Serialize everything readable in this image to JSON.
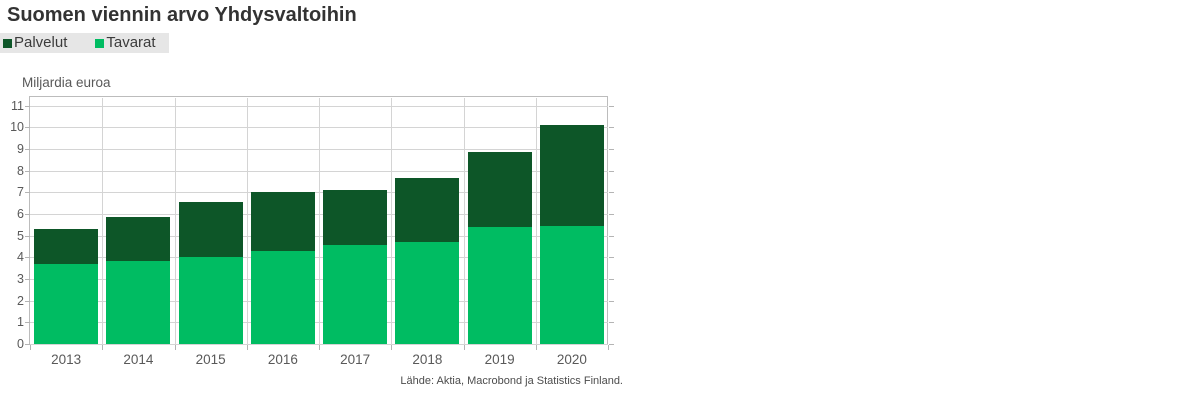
{
  "title": "Suomen viennin arvo Yhdysvaltoihin",
  "y_axis_title": "Miljardia euroa",
  "source_note": "Lähde: Aktia, Macrobond ja Statistics Finland.",
  "colors": {
    "palvelut": "#0d5628",
    "tavarat": "#00bc62",
    "legend_background": "#e6e6e6",
    "gridline": "#d4d4d4",
    "plot_border": "#bcbcbc",
    "axis_text": "#595959",
    "title_text": "#333333"
  },
  "chart_data": {
    "type": "bar",
    "stacked": true,
    "title": "Suomen viennin arvo Yhdysvaltoihin",
    "ylabel": "Miljardia euroa",
    "xlabel": "",
    "categories": [
      "2013",
      "2014",
      "2015",
      "2016",
      "2017",
      "2018",
      "2019",
      "2020"
    ],
    "series": [
      {
        "name": "Palvelut",
        "color": "#0d5628",
        "values": [
          1.6,
          2.0,
          2.55,
          2.7,
          2.55,
          2.95,
          3.45,
          4.65
        ]
      },
      {
        "name": "Tavarat",
        "color": "#00bc62",
        "values": [
          3.7,
          3.85,
          4.0,
          4.3,
          4.55,
          4.7,
          5.4,
          5.45
        ]
      }
    ],
    "stack_order_bottom_to_top": [
      "Tavarat",
      "Palvelut"
    ],
    "totals": [
      5.3,
      5.85,
      6.55,
      7.0,
      7.1,
      7.65,
      8.85,
      10.1
    ],
    "unit": "Miljardia euroa",
    "yticks": [
      0,
      1,
      2,
      3,
      4,
      5,
      6,
      7,
      8,
      9,
      10,
      11
    ],
    "ylim": [
      0,
      11.375
    ],
    "grid": true,
    "legend_position": "top-left",
    "source": "Lähde: Aktia, Macrobond ja Statistics Finland."
  }
}
